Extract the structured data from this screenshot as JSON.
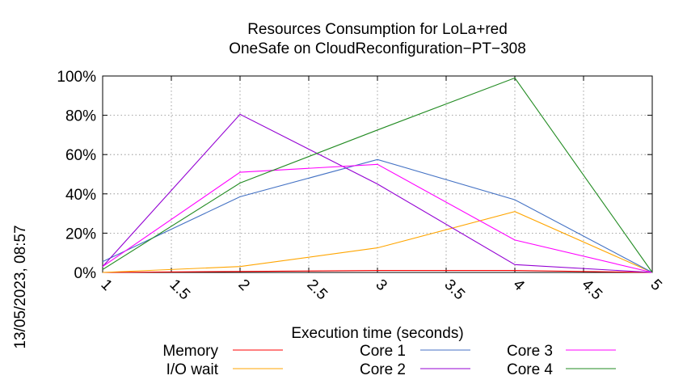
{
  "chart_data": {
    "type": "line",
    "title": "Resources Consumption for LoLa+red",
    "subtitle": "OneSafe on CloudReconfiguration−PT−308",
    "xlabel": "Execution time (seconds)",
    "ylabel": "",
    "side_label": "13/05/2023, 08:57",
    "xlim": [
      1,
      5
    ],
    "ylim": [
      0,
      100
    ],
    "x_ticks": [
      1,
      1.5,
      2,
      2.5,
      3,
      3.5,
      4,
      4.5,
      5
    ],
    "x_tick_labels": [
      "1",
      "1.5",
      "2",
      "2.5",
      "3",
      "3.5",
      "4",
      "4.5",
      "5"
    ],
    "y_ticks": [
      0,
      20,
      40,
      60,
      80,
      100
    ],
    "y_tick_labels": [
      "0%",
      "20%",
      "40%",
      "60%",
      "80%",
      "100%"
    ],
    "grid": true,
    "legend_position": "bottom",
    "x": [
      1,
      2,
      3,
      4,
      5
    ],
    "series": [
      {
        "name": "Memory",
        "color": "#ff0000",
        "values": [
          0,
          0.5,
          1,
          1,
          0
        ]
      },
      {
        "name": "I/O wait",
        "color": "#ffa500",
        "values": [
          0,
          3,
          12.5,
          31,
          0
        ]
      },
      {
        "name": "Core 1",
        "color": "#4472c4",
        "values": [
          5.5,
          38.5,
          57.5,
          37,
          0
        ]
      },
      {
        "name": "Core 2",
        "color": "#9400d3",
        "values": [
          3,
          80.5,
          45,
          4,
          0
        ]
      },
      {
        "name": "Core 3",
        "color": "#ff00ff",
        "values": [
          3,
          51,
          55,
          16.5,
          0
        ]
      },
      {
        "name": "Core 4",
        "color": "#228b22",
        "values": [
          1.5,
          45.5,
          72.5,
          99,
          0
        ]
      }
    ]
  }
}
